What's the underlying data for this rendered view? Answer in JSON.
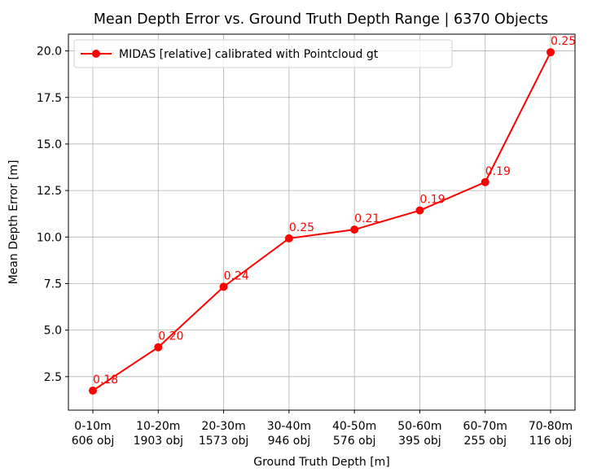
{
  "chart_data": {
    "type": "line",
    "title": "Mean Depth Error vs. Ground Truth Depth Range | 6370 Objects",
    "xlabel": "Ground Truth Depth [m]",
    "ylabel": "Mean Depth Error [m]",
    "categories": [
      [
        "0-10m",
        "606 obj"
      ],
      [
        "10-20m",
        "1903 obj"
      ],
      [
        "20-30m",
        "1573 obj"
      ],
      [
        "30-40m",
        "946 obj"
      ],
      [
        "40-50m",
        "576 obj"
      ],
      [
        "50-60m",
        "395 obj"
      ],
      [
        "60-70m",
        "255 obj"
      ],
      [
        "70-80m",
        "116 obj"
      ]
    ],
    "series": [
      {
        "name": "MIDAS [relative] calibrated with Pointcloud gt",
        "color": "#ff0000",
        "values": [
          1.75,
          4.08,
          7.33,
          9.93,
          10.4,
          11.43,
          12.95,
          19.93
        ],
        "labels": [
          "0.18",
          "0.20",
          "0.24",
          "0.25",
          "0.21",
          "0.19",
          "0.19",
          "0.25"
        ]
      }
    ],
    "yticks": [
      "2.5",
      "5.0",
      "7.5",
      "10.0",
      "12.5",
      "15.0",
      "17.5",
      "20.0"
    ],
    "ylim": [
      0.7,
      20.9
    ],
    "grid": true,
    "legend": "top-left"
  }
}
